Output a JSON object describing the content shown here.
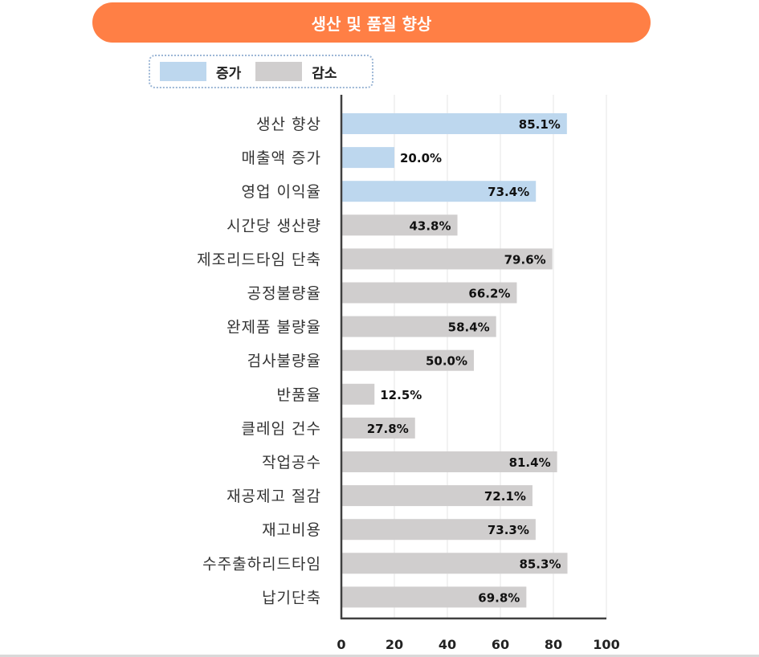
{
  "title": "생산 및 품질 향상",
  "legend": [
    {
      "label": "증가",
      "color": "#bdd7ee"
    },
    {
      "label": "감소",
      "color": "#d0cece"
    }
  ],
  "chart_data": {
    "type": "bar",
    "orientation": "horizontal",
    "categories": [
      "생산 향상",
      "매출액 증가",
      "영업 이익율",
      "시간당 생산량",
      "제조리드타임 단축",
      "공정불량율",
      "완제품 불량율",
      "검사불량율",
      "반품율",
      "클레임 건수",
      "작업공수",
      "재공제고 절감",
      "재고비용",
      "수주출하리드타임",
      "납기단축"
    ],
    "values": [
      85.1,
      20.0,
      73.4,
      43.8,
      79.6,
      66.2,
      58.4,
      50.0,
      12.5,
      27.8,
      81.4,
      72.1,
      73.3,
      85.3,
      69.8
    ],
    "value_labels": [
      "85.1%",
      "20.0%",
      "73.4%",
      "43.8%",
      "79.6%",
      "66.2%",
      "58.4%",
      "50.0%",
      "12.5%",
      "27.8%",
      "81.4%",
      "72.1%",
      "73.3%",
      "85.3%",
      "69.8%"
    ],
    "groups": [
      "증가",
      "증가",
      "증가",
      "감소",
      "감소",
      "감소",
      "감소",
      "감소",
      "감소",
      "감소",
      "감소",
      "감소",
      "감소",
      "감소",
      "감소"
    ],
    "xlim": [
      0,
      100
    ],
    "xticks": [
      "0",
      "20",
      "40",
      "60",
      "80",
      "100"
    ],
    "grid": true,
    "legend_position": "top-left"
  }
}
